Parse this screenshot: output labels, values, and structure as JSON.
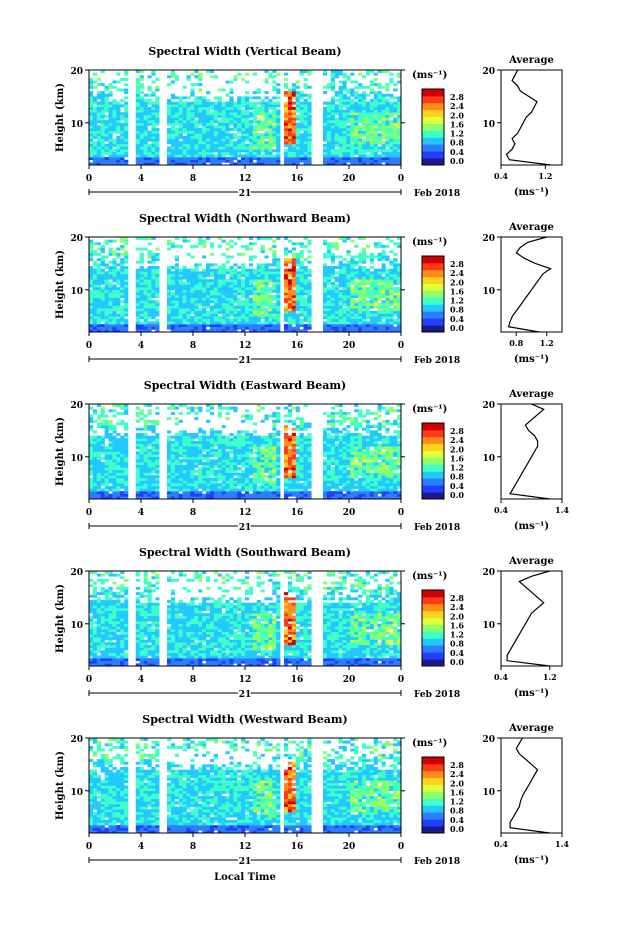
{
  "figure": {
    "xlabel": "Local Time",
    "colorbar_unit": "(ms⁻¹)",
    "colorbar_ticks": [
      "0.0",
      "0.4",
      "0.8",
      "1.2",
      "1.6",
      "2.0",
      "2.4",
      "2.8"
    ],
    "colorbar_colors": [
      "#1a1a8c",
      "#2040ff",
      "#2f7dff",
      "#22c8ff",
      "#3fffc9",
      "#8cff6a",
      "#e0ff3a",
      "#ffd21f",
      "#ff8c1a",
      "#ff3a1a",
      "#d00000"
    ]
  },
  "chart_data": [
    {
      "type": "heatmap",
      "title": "Spectral Width (Vertical Beam)",
      "ylabel": "Height (km)",
      "xlabel": "",
      "x_ticks": [
        "0",
        "4",
        "8",
        "12",
        "16",
        "20",
        "0"
      ],
      "date_label": "21",
      "month_label": "Feb 2018",
      "y_ticks": [
        "20",
        "10"
      ],
      "ylim": [
        2,
        20
      ],
      "xlim": [
        0,
        24
      ],
      "data_gaps_hours": [
        [
          3.1,
          3.5
        ],
        [
          5.5,
          6.0
        ],
        [
          14.6,
          15.0
        ],
        [
          17.0,
          18.0
        ]
      ],
      "profile": {
        "title": "Average",
        "xlabel": "(ms⁻¹)",
        "x_ticks": [
          "0.4",
          "1.2"
        ],
        "xlim": [
          0.4,
          1.5
        ],
        "y_ticks": [
          "20",
          "10"
        ],
        "heights": [
          2,
          3,
          4,
          5,
          6,
          7,
          8,
          9,
          10,
          11,
          12,
          13,
          14,
          15,
          16,
          17,
          18,
          19,
          20
        ],
        "values": [
          1.3,
          0.55,
          0.5,
          0.6,
          0.65,
          0.6,
          0.7,
          0.75,
          0.8,
          0.85,
          0.95,
          1.0,
          1.05,
          0.9,
          0.75,
          0.7,
          0.6,
          0.65,
          0.7
        ]
      }
    },
    {
      "type": "heatmap",
      "title": "Spectral Width (Northward Beam)",
      "ylabel": "Height (km)",
      "xlabel": "",
      "x_ticks": [
        "0",
        "4",
        "8",
        "12",
        "16",
        "20",
        "0"
      ],
      "date_label": "21",
      "month_label": "Feb 2018",
      "y_ticks": [
        "20",
        "10"
      ],
      "ylim": [
        2,
        20
      ],
      "xlim": [
        0,
        24
      ],
      "data_gaps_hours": [
        [
          3.1,
          3.5
        ],
        [
          5.5,
          6.0
        ],
        [
          14.6,
          15.0
        ],
        [
          17.0,
          18.0
        ]
      ],
      "profile": {
        "title": "Average",
        "xlabel": "(ms⁻¹)",
        "x_ticks": [
          "0.8",
          "1.2"
        ],
        "xlim": [
          0.6,
          1.4
        ],
        "y_ticks": [
          "20",
          "10"
        ],
        "heights": [
          2,
          3,
          4,
          5,
          6,
          7,
          8,
          9,
          10,
          11,
          12,
          13,
          14,
          15,
          16,
          17,
          18,
          19,
          20
        ],
        "values": [
          1.1,
          0.7,
          0.72,
          0.75,
          0.8,
          0.85,
          0.9,
          0.95,
          1.0,
          1.05,
          1.1,
          1.15,
          1.25,
          1.05,
          0.9,
          0.8,
          0.85,
          0.95,
          1.2
        ]
      }
    },
    {
      "type": "heatmap",
      "title": "Spectral Width (Eastward Beam)",
      "ylabel": "Height (km)",
      "xlabel": "",
      "x_ticks": [
        "0",
        "4",
        "8",
        "12",
        "16",
        "20",
        "0"
      ],
      "date_label": "21",
      "month_label": "Feb 2018",
      "y_ticks": [
        "20",
        "10"
      ],
      "ylim": [
        2,
        20
      ],
      "xlim": [
        0,
        24
      ],
      "data_gaps_hours": [
        [
          3.1,
          3.5
        ],
        [
          5.5,
          6.0
        ],
        [
          14.6,
          15.0
        ],
        [
          17.0,
          18.0
        ]
      ],
      "profile": {
        "title": "Average",
        "xlabel": "(ms⁻¹)",
        "x_ticks": [
          "0.4",
          "1.4"
        ],
        "xlim": [
          0.4,
          1.4
        ],
        "y_ticks": [
          "20",
          "10"
        ],
        "heights": [
          2,
          3,
          4,
          5,
          6,
          7,
          8,
          9,
          10,
          11,
          12,
          13,
          14,
          15,
          16,
          17,
          18,
          19,
          20
        ],
        "values": [
          1.2,
          0.55,
          0.6,
          0.65,
          0.7,
          0.75,
          0.8,
          0.85,
          0.9,
          0.95,
          1.0,
          1.0,
          0.95,
          0.85,
          0.8,
          0.9,
          1.0,
          1.1,
          0.9
        ]
      }
    },
    {
      "type": "heatmap",
      "title": "Spectral Width (Southward Beam)",
      "ylabel": "Height (km)",
      "xlabel": "",
      "x_ticks": [
        "0",
        "4",
        "8",
        "12",
        "16",
        "20",
        "0"
      ],
      "date_label": "21",
      "month_label": "Feb 2018",
      "y_ticks": [
        "20",
        "10"
      ],
      "ylim": [
        2,
        20
      ],
      "xlim": [
        0,
        24
      ],
      "data_gaps_hours": [
        [
          3.1,
          3.5
        ],
        [
          5.5,
          6.0
        ],
        [
          14.6,
          15.0
        ],
        [
          17.0,
          18.0
        ]
      ],
      "profile": {
        "title": "Average",
        "xlabel": "(ms⁻¹)",
        "x_ticks": [
          "0.4",
          "1.2"
        ],
        "xlim": [
          0.4,
          1.4
        ],
        "y_ticks": [
          "20",
          "10"
        ],
        "heights": [
          2,
          3,
          4,
          5,
          6,
          7,
          8,
          9,
          10,
          11,
          12,
          13,
          14,
          15,
          16,
          17,
          18,
          19,
          20
        ],
        "values": [
          1.2,
          0.5,
          0.5,
          0.55,
          0.6,
          0.65,
          0.7,
          0.75,
          0.8,
          0.85,
          0.9,
          1.0,
          1.1,
          1.0,
          0.9,
          0.8,
          0.7,
          0.9,
          1.2
        ]
      }
    },
    {
      "type": "heatmap",
      "title": "Spectral Width (Westward Beam)",
      "ylabel": "Height (km)",
      "xlabel": "Local Time",
      "x_ticks": [
        "0",
        "4",
        "8",
        "12",
        "16",
        "20",
        "0"
      ],
      "date_label": "21",
      "month_label": "Feb 2018",
      "y_ticks": [
        "20",
        "10"
      ],
      "ylim": [
        2,
        20
      ],
      "xlim": [
        0,
        24
      ],
      "data_gaps_hours": [
        [
          3.1,
          3.5
        ],
        [
          5.5,
          6.0
        ],
        [
          14.6,
          15.0
        ],
        [
          17.0,
          18.0
        ]
      ],
      "profile": {
        "title": "Average",
        "xlabel": "(ms⁻¹)",
        "x_ticks": [
          "0.4",
          "1.4"
        ],
        "xlim": [
          0.4,
          1.4
        ],
        "y_ticks": [
          "20",
          "10"
        ],
        "heights": [
          2,
          3,
          4,
          5,
          6,
          7,
          8,
          9,
          10,
          11,
          12,
          13,
          14,
          15,
          16,
          17,
          18,
          19,
          20
        ],
        "values": [
          1.2,
          0.55,
          0.55,
          0.6,
          0.65,
          0.7,
          0.72,
          0.75,
          0.8,
          0.85,
          0.9,
          0.95,
          1.0,
          0.9,
          0.8,
          0.7,
          0.65,
          0.7,
          0.75
        ]
      }
    }
  ]
}
